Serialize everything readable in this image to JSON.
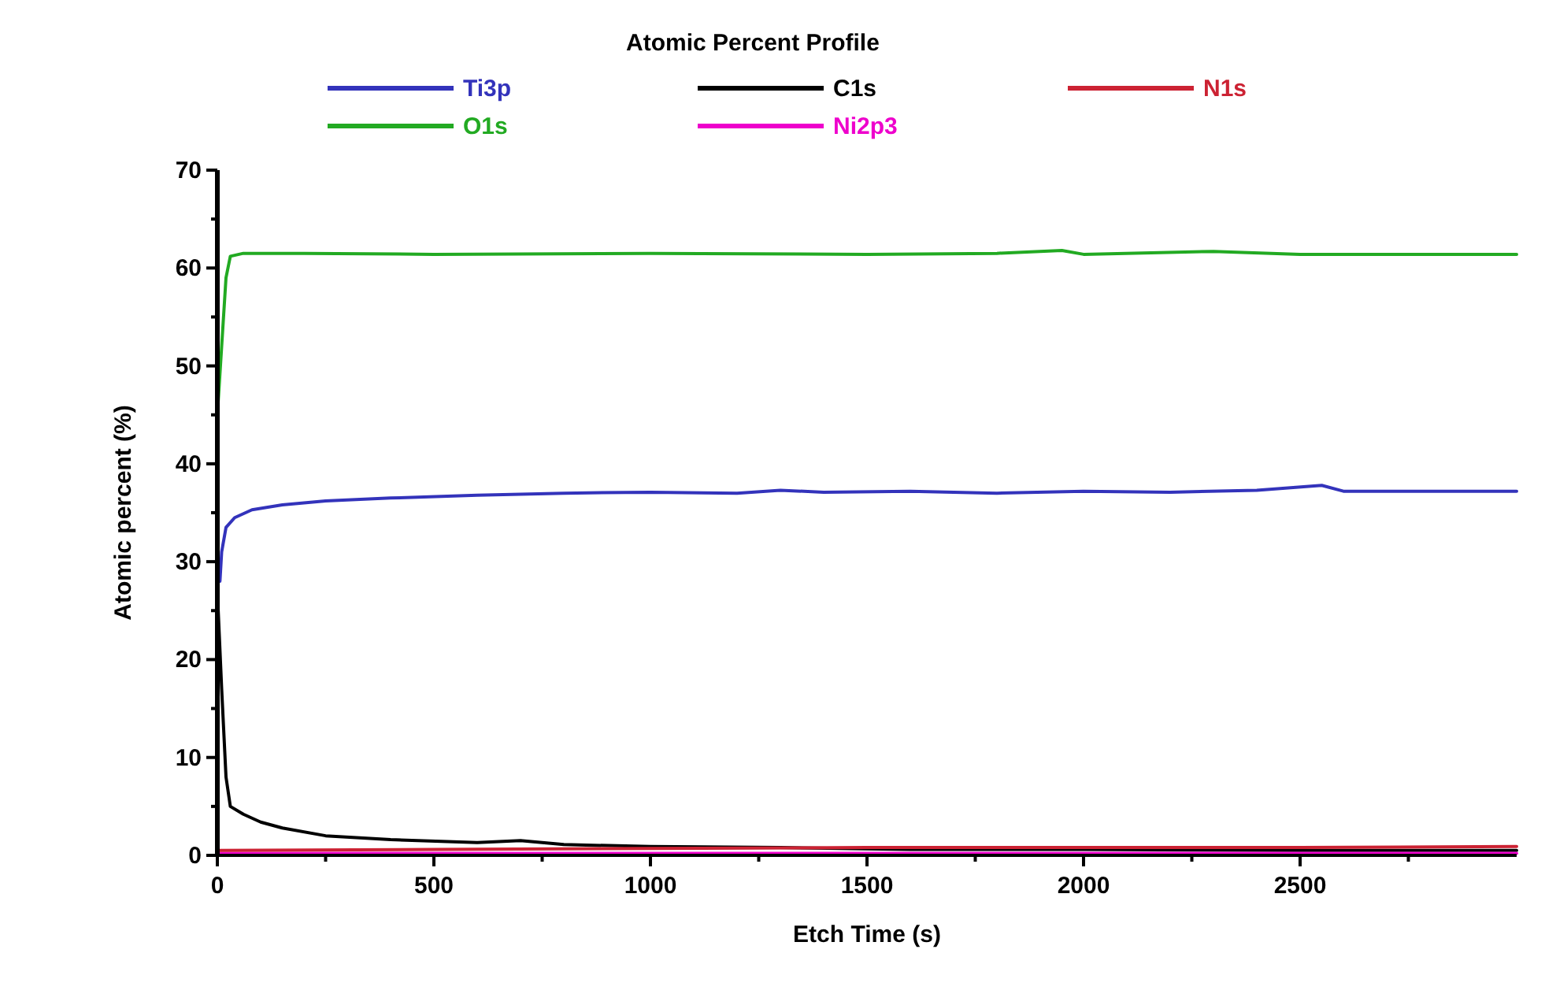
{
  "chart_data": {
    "type": "line",
    "title": "Atomic Percent Profile",
    "xlabel": "Etch Time (s)",
    "ylabel": "Atomic percent (%)",
    "xlim": [
      0,
      3000
    ],
    "ylim": [
      0,
      70
    ],
    "xticks": [
      0,
      {
        "value": 250,
        "label": null
      },
      500,
      {
        "value": 750,
        "label": null
      },
      1000,
      {
        "value": 1250,
        "label": null
      },
      1500,
      {
        "value": 1750,
        "label": null
      },
      2000,
      {
        "value": 2250,
        "label": null
      },
      2500,
      {
        "value": 2750,
        "label": null
      }
    ],
    "yticks": [
      0,
      {
        "value": 5,
        "label": null
      },
      10,
      {
        "value": 15,
        "label": null
      },
      20,
      {
        "value": 25,
        "label": null
      },
      30,
      {
        "value": 35,
        "label": null
      },
      40,
      {
        "value": 45,
        "label": null
      },
      50,
      {
        "value": 55,
        "label": null
      },
      60,
      {
        "value": 65,
        "label": null
      },
      70
    ],
    "legend": "top",
    "grid": false,
    "marker": "none",
    "line_style": "solid",
    "series": [
      {
        "name": "Ti3p",
        "color": "#3333bb",
        "x": [
          6,
          10,
          20,
          40,
          80,
          150,
          250,
          400,
          600,
          800,
          1000,
          1200,
          1300,
          1400,
          1600,
          1800,
          2000,
          2200,
          2400,
          2550,
          2600,
          2800,
          3000
        ],
        "values": [
          28,
          31,
          33.5,
          34.5,
          35.3,
          35.8,
          36.2,
          36.5,
          36.8,
          37,
          37.1,
          37,
          37.3,
          37.1,
          37.2,
          37,
          37.2,
          37.1,
          37.3,
          37.8,
          37.2,
          37.2,
          37.2
        ]
      },
      {
        "name": "O1s",
        "color": "#22aa22",
        "x": [
          0,
          10,
          20,
          30,
          60,
          200,
          500,
          1000,
          1500,
          1800,
          1950,
          2000,
          2300,
          2500,
          3000
        ],
        "values": [
          45,
          52,
          59,
          61.2,
          61.5,
          61.5,
          61.4,
          61.5,
          61.4,
          61.5,
          61.8,
          61.4,
          61.7,
          61.4,
          61.4
        ]
      },
      {
        "name": "C1s",
        "color": "#000000",
        "x": [
          0,
          10,
          20,
          30,
          60,
          100,
          150,
          250,
          400,
          600,
          700,
          800,
          1000,
          1300,
          1600,
          2000,
          2500,
          3000
        ],
        "values": [
          27,
          17,
          8,
          5,
          4.2,
          3.4,
          2.8,
          2,
          1.6,
          1.3,
          1.5,
          1.1,
          0.9,
          0.8,
          0.6,
          0.6,
          0.5,
          0.5
        ]
      },
      {
        "name": "Ni2p3",
        "color": "#ee00cc",
        "x": [
          0,
          500,
          1000,
          1500,
          2000,
          2500,
          3000
        ],
        "values": [
          0.2,
          0.2,
          0.2,
          0.2,
          0.2,
          0.2,
          0.2
        ]
      },
      {
        "name": "N1s",
        "color": "#cc2233",
        "x": [
          0,
          500,
          1000,
          1500,
          2000,
          2500,
          3000
        ],
        "values": [
          0.5,
          0.6,
          0.7,
          0.8,
          0.8,
          0.8,
          0.9
        ]
      }
    ]
  }
}
